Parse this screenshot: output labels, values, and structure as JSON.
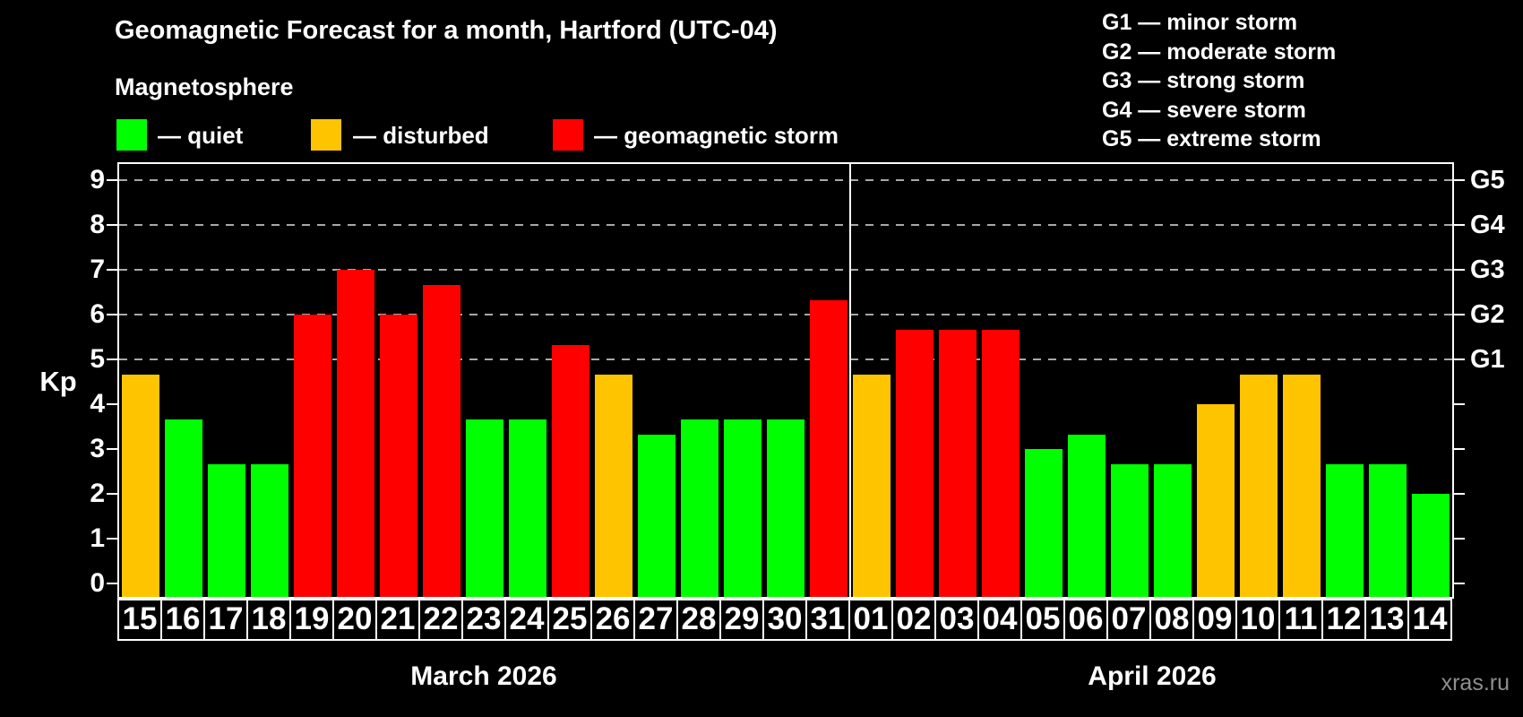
{
  "title": "Geomagnetic Forecast for a month, Hartford (UTC-04)",
  "subtitle": "Magnetosphere",
  "legend": {
    "items": [
      {
        "key": "quiet",
        "label": "— quiet"
      },
      {
        "key": "disturbed",
        "label": "— disturbed"
      },
      {
        "key": "storm",
        "label": "— geomagnetic storm"
      }
    ]
  },
  "g_legend": [
    "G1 — minor storm",
    "G2 — moderate storm",
    "G3 — strong storm",
    "G4 — severe storm",
    "G5 — extreme storm"
  ],
  "colors": {
    "background": "#000000",
    "quiet": "#00ff00",
    "disturbed": "#ffc400",
    "storm": "#ff0000",
    "axis": "#ffffff",
    "grid": "#a8a8a8",
    "watermark": "#8f8f8f"
  },
  "y_axis": {
    "label": "Kp",
    "ticks": [
      0,
      1,
      2,
      3,
      4,
      5,
      6,
      7,
      8,
      9
    ]
  },
  "right_axis": {
    "labels": [
      {
        "kp": 5,
        "text": "G1"
      },
      {
        "kp": 6,
        "text": "G2"
      },
      {
        "kp": 7,
        "text": "G3"
      },
      {
        "kp": 8,
        "text": "G4"
      },
      {
        "kp": 9,
        "text": "G5"
      }
    ]
  },
  "watermark": "xras.ru",
  "chart_data": {
    "type": "bar",
    "title": "Geomagnetic Forecast for a month, Hartford (UTC-04)",
    "xlabel": "",
    "ylabel": "Kp",
    "ylim": [
      0,
      9
    ],
    "grid": "dashed horizontal lines at Kp 5,6,7,8,9",
    "legend_position": "top",
    "months": [
      {
        "label": "March 2026",
        "days": [
          {
            "day": "15",
            "kp": 4.67,
            "level": "disturbed"
          },
          {
            "day": "16",
            "kp": 3.67,
            "level": "quiet"
          },
          {
            "day": "17",
            "kp": 2.67,
            "level": "quiet"
          },
          {
            "day": "18",
            "kp": 2.67,
            "level": "quiet"
          },
          {
            "day": "19",
            "kp": 6.0,
            "level": "storm"
          },
          {
            "day": "20",
            "kp": 7.0,
            "level": "storm"
          },
          {
            "day": "21",
            "kp": 6.0,
            "level": "storm"
          },
          {
            "day": "22",
            "kp": 6.67,
            "level": "storm"
          },
          {
            "day": "23",
            "kp": 3.67,
            "level": "quiet"
          },
          {
            "day": "24",
            "kp": 3.67,
            "level": "quiet"
          },
          {
            "day": "25",
            "kp": 5.33,
            "level": "storm"
          },
          {
            "day": "26",
            "kp": 4.67,
            "level": "disturbed"
          },
          {
            "day": "27",
            "kp": 3.33,
            "level": "quiet"
          },
          {
            "day": "28",
            "kp": 3.67,
            "level": "quiet"
          },
          {
            "day": "29",
            "kp": 3.67,
            "level": "quiet"
          },
          {
            "day": "30",
            "kp": 3.67,
            "level": "quiet"
          },
          {
            "day": "31",
            "kp": 6.33,
            "level": "storm"
          }
        ]
      },
      {
        "label": "April 2026",
        "days": [
          {
            "day": "01",
            "kp": 4.67,
            "level": "disturbed"
          },
          {
            "day": "02",
            "kp": 5.67,
            "level": "storm"
          },
          {
            "day": "03",
            "kp": 5.67,
            "level": "storm"
          },
          {
            "day": "04",
            "kp": 5.67,
            "level": "storm"
          },
          {
            "day": "05",
            "kp": 3.0,
            "level": "quiet"
          },
          {
            "day": "06",
            "kp": 3.33,
            "level": "quiet"
          },
          {
            "day": "07",
            "kp": 2.67,
            "level": "quiet"
          },
          {
            "day": "08",
            "kp": 2.67,
            "level": "quiet"
          },
          {
            "day": "09",
            "kp": 4.0,
            "level": "disturbed"
          },
          {
            "day": "10",
            "kp": 4.67,
            "level": "disturbed"
          },
          {
            "day": "11",
            "kp": 4.67,
            "level": "disturbed"
          },
          {
            "day": "12",
            "kp": 2.67,
            "level": "quiet"
          },
          {
            "day": "13",
            "kp": 2.67,
            "level": "quiet"
          },
          {
            "day": "14",
            "kp": 2.0,
            "level": "quiet"
          }
        ]
      }
    ]
  }
}
